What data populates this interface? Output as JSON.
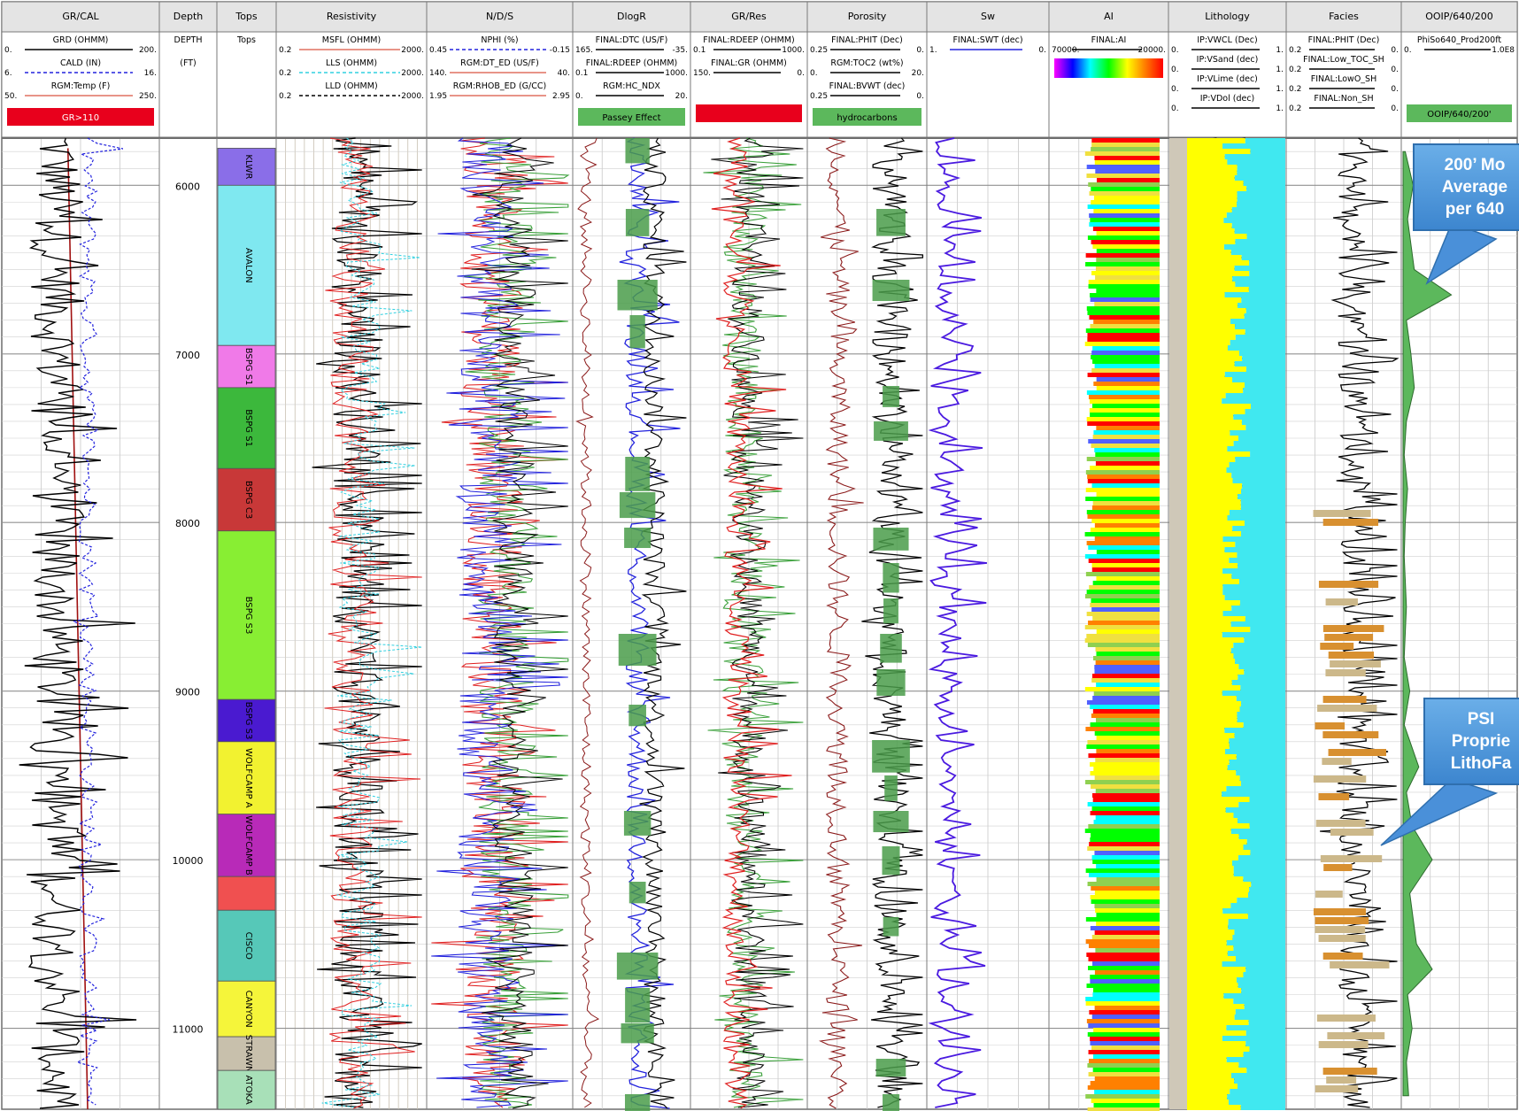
{
  "tracks": [
    {
      "title": "GR/CAL",
      "curves": [
        {
          "name": "GRD (OHMM)",
          "min": "0.",
          "max": "200.",
          "color": "#000000",
          "style": "solid"
        },
        {
          "name": "CALD (IN)",
          "min": "6.",
          "max": "16.",
          "color": "#2222dd",
          "style": "dashed"
        },
        {
          "name": "RGM:Temp (F)",
          "min": "50.",
          "max": "250.",
          "color": "#e07060",
          "style": "solid"
        }
      ],
      "badges": [
        {
          "text": "GR>110",
          "color": "#e8001c"
        }
      ]
    },
    {
      "title": "Depth",
      "curves": [
        {
          "name": "DEPTH",
          "min": "",
          "max": "",
          "color": "#000000",
          "style": "text"
        },
        {
          "name": "(FT)",
          "min": "",
          "max": "",
          "color": "#000000",
          "style": "text"
        }
      ],
      "badges": []
    },
    {
      "title": "Tops",
      "curves": [
        {
          "name": "Tops",
          "min": "",
          "max": "",
          "color": "#000000",
          "style": "text"
        }
      ],
      "badges": []
    },
    {
      "title": "Resistivity",
      "curves": [
        {
          "name": "MSFL (OHMM)",
          "min": "0.2",
          "max": "2000.",
          "color": "#e07060",
          "style": "solid"
        },
        {
          "name": "LLS (OHMM)",
          "min": "0.2",
          "max": "2000.",
          "color": "#30d0e0",
          "style": "dashed"
        },
        {
          "name": "LLD (OHMM)",
          "min": "0.2",
          "max": "2000.",
          "color": "#000000",
          "style": "dashed"
        }
      ],
      "badges": []
    },
    {
      "title": "N/D/S",
      "curves": [
        {
          "name": "NPHI (%)",
          "min": "0.45",
          "max": "-0.15",
          "color": "#2222dd",
          "style": "dashed"
        },
        {
          "name": "RGM:DT_ED (US/F)",
          "min": "140.",
          "max": "40.",
          "color": "#e07060",
          "style": "solid"
        },
        {
          "name": "RGM:RHOB_ED (G/CC)",
          "min": "1.95",
          "max": "2.95",
          "color": "#e07060",
          "style": "solid"
        }
      ],
      "badges": []
    },
    {
      "title": "DlogR",
      "curves": [
        {
          "name": "FINAL:DTC (US/F)",
          "min": "165.",
          "max": "-35.",
          "color": "#000000",
          "style": "solid"
        },
        {
          "name": "FINAL:RDEEP (OHMM)",
          "min": "0.1",
          "max": "1000.",
          "color": "#000000",
          "style": "solid"
        },
        {
          "name": "RGM:HC_NDX",
          "min": "0.",
          "max": "20.",
          "color": "#000000",
          "style": "solid"
        }
      ],
      "badges": [
        {
          "text": "Passey Effect",
          "color": "#5cb85c"
        }
      ]
    },
    {
      "title": "GR/Res",
      "curves": [
        {
          "name": "FINAL:RDEEP (OHMM)",
          "min": "0.1",
          "max": "1000.",
          "color": "#000000",
          "style": "solid"
        },
        {
          "name": "FINAL:GR (OHMM)",
          "min": "150.",
          "max": "0.",
          "color": "#000000",
          "style": "solid"
        }
      ],
      "badges": [
        {
          "text": "",
          "color": "#e8001c"
        }
      ]
    },
    {
      "title": "Porosity",
      "curves": [
        {
          "name": "FINAL:PHIT (Dec)",
          "min": "0.25",
          "max": "0.",
          "color": "#000000",
          "style": "solid"
        },
        {
          "name": "RGM:TOC2 (wt%)",
          "min": "0.",
          "max": "20.",
          "color": "#000000",
          "style": "solid"
        },
        {
          "name": "FINAL:BVWT (dec)",
          "min": "0.25",
          "max": "0.",
          "color": "#000000",
          "style": "solid"
        }
      ],
      "badges": [
        {
          "text": "hydrocarbons",
          "color": "#5cb85c"
        }
      ]
    },
    {
      "title": "Sw",
      "curves": [
        {
          "name": "FINAL:SWT (dec)",
          "min": "1.",
          "max": "0.",
          "color": "#2222dd",
          "style": "solid"
        }
      ],
      "badges": []
    },
    {
      "title": "AI",
      "curves": [
        {
          "name": "FINAL:AI",
          "min": "70000.",
          "max": "20000.",
          "color": "#000000",
          "style": "solid"
        }
      ],
      "badges": [
        {
          "text": "",
          "color": "rainbow"
        }
      ]
    },
    {
      "title": "Lithology",
      "curves": [
        {
          "name": "IP:VWCL (Dec)",
          "min": "0.",
          "max": "1.",
          "color": "#000000",
          "style": "solid"
        },
        {
          "name": "IP:VSand (dec)",
          "min": "0.",
          "max": "1.",
          "color": "#000000",
          "style": "solid"
        },
        {
          "name": "IP:VLime (dec)",
          "min": "0.",
          "max": "1.",
          "color": "#000000",
          "style": "solid"
        },
        {
          "name": "IP:VDol (dec)",
          "min": "0.",
          "max": "1.",
          "color": "#000000",
          "style": "solid"
        }
      ],
      "badges": []
    },
    {
      "title": "Facies",
      "curves": [
        {
          "name": "FINAL:PHIT (Dec)",
          "min": "0.2",
          "max": "0.",
          "color": "#000000",
          "style": "solid"
        },
        {
          "name": "FINAL:Low_TOC_SH",
          "min": "0.2",
          "max": "0.",
          "color": "#000000",
          "style": "solid"
        },
        {
          "name": "FINAL:LowO_SH",
          "min": "0.2",
          "max": "0.",
          "color": "#000000",
          "style": "solid"
        },
        {
          "name": "FINAL:Non_SH",
          "min": "0.2",
          "max": "0.",
          "color": "#000000",
          "style": "solid"
        }
      ],
      "badges": []
    },
    {
      "title": "OOIP/640/200",
      "curves": [
        {
          "name": "PhiSo640_Prod200ft",
          "min": "0.",
          "max": "1.0E8",
          "color": "#000000",
          "style": "solid"
        }
      ],
      "badges": [
        {
          "text": "OOIP/640/200'",
          "color": "#5cb85c"
        }
      ]
    }
  ],
  "depth_labels": [
    "6000",
    "7000",
    "8000",
    "9000",
    "10000",
    "11000"
  ],
  "tops": [
    {
      "name": "KLWR",
      "top": 5780,
      "base": 6000,
      "color": "#8a6ee8"
    },
    {
      "name": "AVALON",
      "top": 6000,
      "base": 6950,
      "color": "#7fe8f0"
    },
    {
      "name": "BSPG S1",
      "top": 6950,
      "base": 7200,
      "color": "#f07ae8"
    },
    {
      "name": "BSPG S1",
      "top": 7200,
      "base": 7680,
      "color": "#3cb83c"
    },
    {
      "name": "BSPG C3",
      "top": 7680,
      "base": 8050,
      "color": "#c83838"
    },
    {
      "name": "BSPG S3",
      "top": 8050,
      "base": 9050,
      "color": "#88ee33"
    },
    {
      "name": "BSPG S3",
      "top": 9050,
      "base": 9300,
      "color": "#4a1ad0"
    },
    {
      "name": "WOLFCAMP A",
      "top": 9300,
      "base": 9730,
      "color": "#f2f230"
    },
    {
      "name": "WOLFCAMP B",
      "top": 9730,
      "base": 10100,
      "color": "#b82ab8"
    },
    {
      "name": "",
      "top": 10100,
      "base": 10300,
      "color": "#f05050"
    },
    {
      "name": "CISCO",
      "top": 10300,
      "base": 10720,
      "color": "#56c8b8"
    },
    {
      "name": "CANYON",
      "top": 10720,
      "base": 11050,
      "color": "#f5f53a"
    },
    {
      "name": "STRAWN",
      "top": 11050,
      "base": 11250,
      "color": "#c8c0ac"
    },
    {
      "name": "ATOKA",
      "top": 11250,
      "base": 11480,
      "color": "#a8e0b8"
    }
  ],
  "chart_data": {
    "type": "line",
    "title": "",
    "xlabel": "",
    "ylabel": "DEPTH (FT)",
    "depth_range": [
      5720,
      11480
    ],
    "depth_ticks": [
      6000,
      7000,
      8000,
      9000,
      10000,
      11000
    ],
    "ooip_profile": {
      "name": "PhiSo640_Prod200ft",
      "x_range": [
        0,
        100000000
      ],
      "depth": [
        5800,
        6000,
        6200,
        6500,
        6650,
        6800,
        7000,
        7200,
        7400,
        7600,
        7800,
        8000,
        8200,
        8500,
        8800,
        9000,
        9200,
        9450,
        9600,
        9800,
        10000,
        10200,
        10500,
        10650,
        10800,
        11000,
        11200,
        11400
      ],
      "value": [
        2000000,
        9000000,
        4000000,
        10000000,
        43000000,
        3000000,
        7000000,
        10000000,
        3000000,
        1000000,
        4000000,
        2000000,
        1000000,
        3000000,
        1000000,
        6000000,
        1000000,
        14000000,
        3000000,
        8000000,
        26000000,
        6000000,
        12000000,
        26000000,
        4000000,
        8000000,
        3000000,
        5000000
      ]
    },
    "temperature": {
      "name": "RGM:Temp (F)",
      "x_range": [
        50,
        250
      ],
      "depth": [
        5780,
        11480
      ],
      "value": [
        134,
        159
      ]
    }
  },
  "callouts": [
    {
      "lines": [
        "200’ Mo",
        "Average",
        "per 640"
      ]
    },
    {
      "lines": [
        "PSI",
        "Proprie",
        "LithoFa"
      ]
    }
  ]
}
